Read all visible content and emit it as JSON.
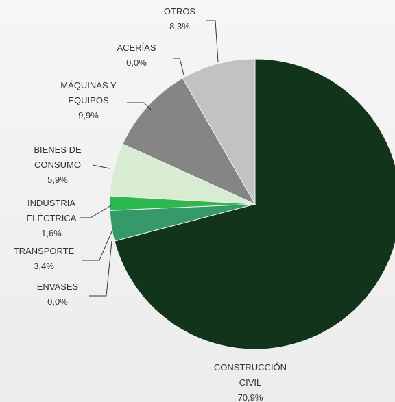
{
  "chart_data": {
    "type": "pie",
    "categories": [
      "CONSTRUCCIÓN CIVIL",
      "ENVASES",
      "TRANSPORTE",
      "INDUSTRIA ELÉCTRICA",
      "BIENES DE CONSUMO",
      "MÁQUINAS Y EQUIPOS",
      "ACERÍAS",
      "OTROS"
    ],
    "values": [
      70.9,
      0.0,
      3.4,
      1.6,
      5.9,
      9.9,
      0.0,
      8.3
    ],
    "value_labels": [
      "70,9%",
      "0,0%",
      "3,4%",
      "1,6%",
      "5,9%",
      "9,9%",
      "0,0%",
      "8,3%"
    ],
    "colors": [
      "#12341a",
      "#2a7a45",
      "#35996a",
      "#2db84d",
      "#d7ecd1",
      "#858585",
      "#9a9a9a",
      "#c2c2c2"
    ]
  }
}
